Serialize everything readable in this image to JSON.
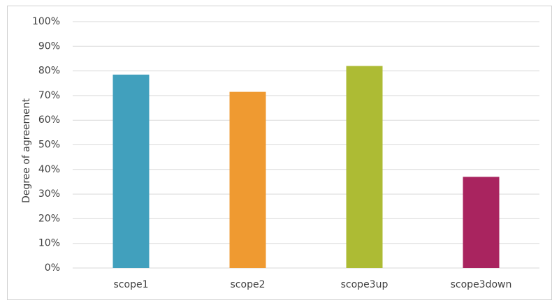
{
  "chart_data": {
    "type": "bar",
    "y_label": "Degree of agreement",
    "categories": [
      "scope1",
      "scope2",
      "scope3up",
      "scope3down"
    ],
    "values": [
      78.5,
      71.5,
      82,
      37
    ],
    "colors": [
      "#41a0bd",
      "#ef9a31",
      "#adbb34",
      "#a9245f"
    ],
    "ylim": [
      0,
      100
    ],
    "yticks": [
      {
        "value": 0,
        "label": "0%"
      },
      {
        "value": 10,
        "label": "10%"
      },
      {
        "value": 20,
        "label": "20%"
      },
      {
        "value": 30,
        "label": "30%"
      },
      {
        "value": 40,
        "label": "40%"
      },
      {
        "value": 50,
        "label": "50%"
      },
      {
        "value": 60,
        "label": "60%"
      },
      {
        "value": 70,
        "label": "70%"
      },
      {
        "value": 80,
        "label": "80%"
      },
      {
        "value": 90,
        "label": "90%"
      },
      {
        "value": 100,
        "label": "100%"
      }
    ],
    "grid": true
  }
}
